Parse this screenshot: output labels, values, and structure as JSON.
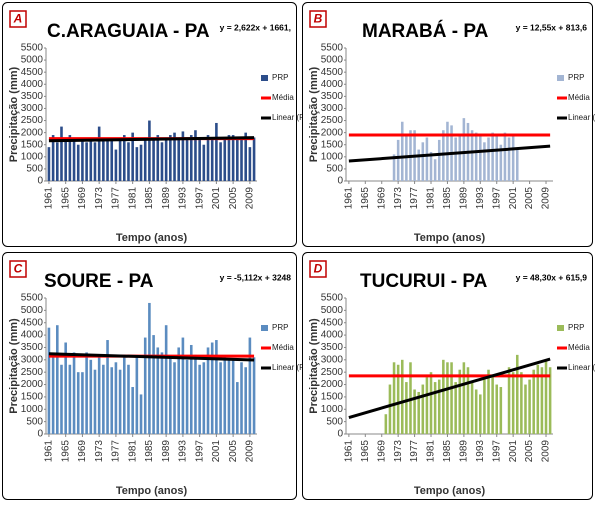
{
  "chart_data": [
    {
      "type": "bar",
      "letter": "A",
      "title": "C.ARAGUAIA - PA",
      "equation": "y = 2,622x + 1661,",
      "y_label": "Precipitação (mm)",
      "x_label": "Tempo (anos)",
      "xlim": [
        1960.3,
        2010.7
      ],
      "xticks": [
        1961,
        1965,
        1969,
        1973,
        1977,
        1981,
        1985,
        1989,
        1993,
        1997,
        2001,
        2005,
        2009
      ],
      "ylim": [
        0,
        5500
      ],
      "yticks": [
        0,
        500,
        1000,
        1500,
        2000,
        2500,
        3000,
        3500,
        4000,
        4500,
        5000,
        5500
      ],
      "legend": "right",
      "series": [
        {
          "name": "PRP",
          "mark": "bar",
          "color": "#2c4d8a",
          "x": [
            1961,
            1962,
            1963,
            1964,
            1965,
            1966,
            1967,
            1968,
            1969,
            1970,
            1971,
            1972,
            1973,
            1974,
            1975,
            1976,
            1977,
            1978,
            1979,
            1980,
            1981,
            1982,
            1983,
            1984,
            1985,
            1986,
            1987,
            1988,
            1989,
            1990,
            1991,
            1992,
            1993,
            1994,
            1995,
            1996,
            1997,
            1998,
            1999,
            2000,
            2001,
            2002,
            2003,
            2004,
            2005,
            2006,
            2007,
            2008,
            2009,
            2010
          ],
          "values": [
            1400,
            1900,
            1600,
            2250,
            1700,
            1900,
            1800,
            1500,
            1700,
            1600,
            1800,
            1600,
            2250,
            1800,
            1700,
            1700,
            1300,
            1800,
            1900,
            1600,
            2000,
            1400,
            1500,
            1800,
            2500,
            1700,
            1900,
            1600,
            1800,
            1900,
            2000,
            1700,
            2050,
            1800,
            1900,
            2100,
            1700,
            1500,
            1900,
            1800,
            2400,
            1600,
            1800,
            1900,
            1900,
            1800,
            1700,
            2000,
            1400,
            1800
          ]
        },
        {
          "name": "Média",
          "mark": "line",
          "color": "#ff0000",
          "x": [
            1961,
            2010
          ],
          "values": [
            1750,
            1750
          ]
        },
        {
          "name": "Linear (PRP)",
          "mark": "line",
          "color": "#000000",
          "x": [
            1961,
            2010
          ],
          "values": [
            1664,
            1792
          ]
        }
      ]
    },
    {
      "type": "bar",
      "letter": "B",
      "title": "MARABÁ - PA",
      "equation": "y = 12,55x + 813,6",
      "y_label": "Precipitação (mm)",
      "x_label": "Tempo (anos)",
      "xlim": [
        1960.3,
        2010.7
      ],
      "xticks": [
        1961,
        1965,
        1969,
        1973,
        1977,
        1981,
        1985,
        1989,
        1993,
        1997,
        2001,
        2005,
        2009
      ],
      "ylim": [
        0,
        5500
      ],
      "yticks": [
        0,
        500,
        1000,
        1500,
        2000,
        2500,
        3000,
        3500,
        4000,
        4500,
        5000,
        5500
      ],
      "legend": "right",
      "series": [
        {
          "name": "PRP",
          "mark": "bar",
          "color": "#a3b5d3",
          "x": [
            1972,
            1973,
            1974,
            1975,
            1976,
            1977,
            1978,
            1979,
            1980,
            1981,
            1982,
            1983,
            1984,
            1985,
            1986,
            1987,
            1988,
            1989,
            1990,
            1991,
            1992,
            1993,
            1994,
            1995,
            1996,
            1997,
            1998,
            1999,
            2000,
            2001,
            2002
          ],
          "values": [
            1100,
            1700,
            2450,
            1900,
            2100,
            2100,
            1300,
            1600,
            1800,
            1200,
            900,
            1700,
            2100,
            2450,
            2300,
            1800,
            1900,
            2600,
            2400,
            2100,
            2000,
            1900,
            1600,
            1800,
            2000,
            1900,
            1500,
            2000,
            1800,
            1900,
            1300
          ]
        },
        {
          "name": "Média",
          "mark": "line",
          "color": "#ff0000",
          "x": [
            1961,
            2010
          ],
          "values": [
            1900,
            1900
          ]
        },
        {
          "name": "Linear (PRP)",
          "mark": "line",
          "color": "#000000",
          "x": [
            1961,
            2010
          ],
          "values": [
            826,
            1441
          ]
        }
      ]
    },
    {
      "type": "bar",
      "letter": "C",
      "title": "SOURE - PA",
      "equation": "y = -5,112x + 3248",
      "y_label": "Precipitação (mm)",
      "x_label": "Tempo (anos)",
      "xlim": [
        1960.3,
        2010.7
      ],
      "xticks": [
        1961,
        1965,
        1969,
        1973,
        1977,
        1981,
        1985,
        1989,
        1993,
        1997,
        2001,
        2005,
        2009
      ],
      "ylim": [
        0,
        5500
      ],
      "yticks": [
        0,
        500,
        1000,
        1500,
        2000,
        2500,
        3000,
        3500,
        4000,
        4500,
        5000,
        5500
      ],
      "legend": "right",
      "series": [
        {
          "name": "PRP",
          "mark": "bar",
          "color": "#5b8cc0",
          "x": [
            1961,
            1962,
            1963,
            1964,
            1965,
            1966,
            1967,
            1968,
            1969,
            1970,
            1971,
            1972,
            1973,
            1974,
            1975,
            1976,
            1977,
            1978,
            1979,
            1980,
            1981,
            1982,
            1983,
            1984,
            1985,
            1986,
            1987,
            1988,
            1989,
            1990,
            1991,
            1992,
            1993,
            1994,
            1995,
            1996,
            1997,
            1998,
            1999,
            2000,
            2001,
            2002,
            2003,
            2004,
            2005,
            2006,
            2007,
            2008,
            2009,
            2010
          ],
          "values": [
            4300,
            3100,
            4400,
            2800,
            3700,
            2800,
            3300,
            2500,
            2500,
            3300,
            3000,
            2600,
            3100,
            2800,
            3800,
            2700,
            2900,
            2600,
            3200,
            2800,
            1900,
            3100,
            1600,
            3900,
            5300,
            4000,
            3500,
            3300,
            4400,
            3100,
            2900,
            3500,
            3900,
            3000,
            3600,
            3200,
            2800,
            2900,
            3500,
            3700,
            3800,
            2900,
            3100,
            3000,
            3000,
            2100,
            2900,
            2700,
            3900,
            3100
          ]
        },
        {
          "name": "Média",
          "mark": "line",
          "color": "#ff0000",
          "x": [
            1961,
            2010
          ],
          "values": [
            3150,
            3150
          ]
        },
        {
          "name": "Linear (PRP)",
          "mark": "line",
          "color": "#000000",
          "x": [
            1961,
            2010
          ],
          "values": [
            3243,
            2992
          ]
        }
      ]
    },
    {
      "type": "bar",
      "letter": "D",
      "title": "TUCURUI - PA",
      "equation": "y = 48,30x + 615,9",
      "y_label": "Precipitação (mm)",
      "x_label": "Tempo (anos)",
      "xlim": [
        1960.3,
        2010.7
      ],
      "xticks": [
        1961,
        1965,
        1969,
        1973,
        1977,
        1981,
        1985,
        1989,
        1993,
        1997,
        2001,
        2005,
        2009
      ],
      "ylim": [
        0,
        5500
      ],
      "yticks": [
        0,
        500,
        1000,
        1500,
        2000,
        2500,
        3000,
        3500,
        4000,
        4500,
        5000,
        5500
      ],
      "legend": "right",
      "series": [
        {
          "name": "PRP",
          "mark": "bar",
          "color": "#9bbb59",
          "x": [
            1970,
            1971,
            1972,
            1973,
            1974,
            1975,
            1976,
            1977,
            1978,
            1979,
            1980,
            1981,
            1982,
            1983,
            1984,
            1985,
            1986,
            1987,
            1988,
            1989,
            1990,
            1991,
            1992,
            1993,
            1994,
            1995,
            1996,
            1997,
            1998,
            2000,
            2001,
            2002,
            2003,
            2004,
            2005,
            2006,
            2007,
            2008,
            2009,
            2010
          ],
          "values": [
            800,
            2000,
            2900,
            2800,
            3000,
            2100,
            2900,
            1800,
            1700,
            2000,
            2300,
            2500,
            2100,
            2200,
            3000,
            2900,
            2900,
            2100,
            2600,
            2900,
            2700,
            2100,
            1800,
            1600,
            2200,
            2600,
            2400,
            2000,
            1900,
            2700,
            2500,
            3200,
            2500,
            2000,
            2200,
            2600,
            2800,
            2700,
            3000,
            2700
          ]
        },
        {
          "name": "Média",
          "mark": "line",
          "color": "#ff0000",
          "x": [
            1961,
            2010
          ],
          "values": [
            2350,
            2350
          ]
        },
        {
          "name": "Linear (PRP)",
          "mark": "line",
          "color": "#000000",
          "x": [
            1961,
            2010
          ],
          "values": [
            664,
            3031
          ]
        }
      ]
    }
  ]
}
